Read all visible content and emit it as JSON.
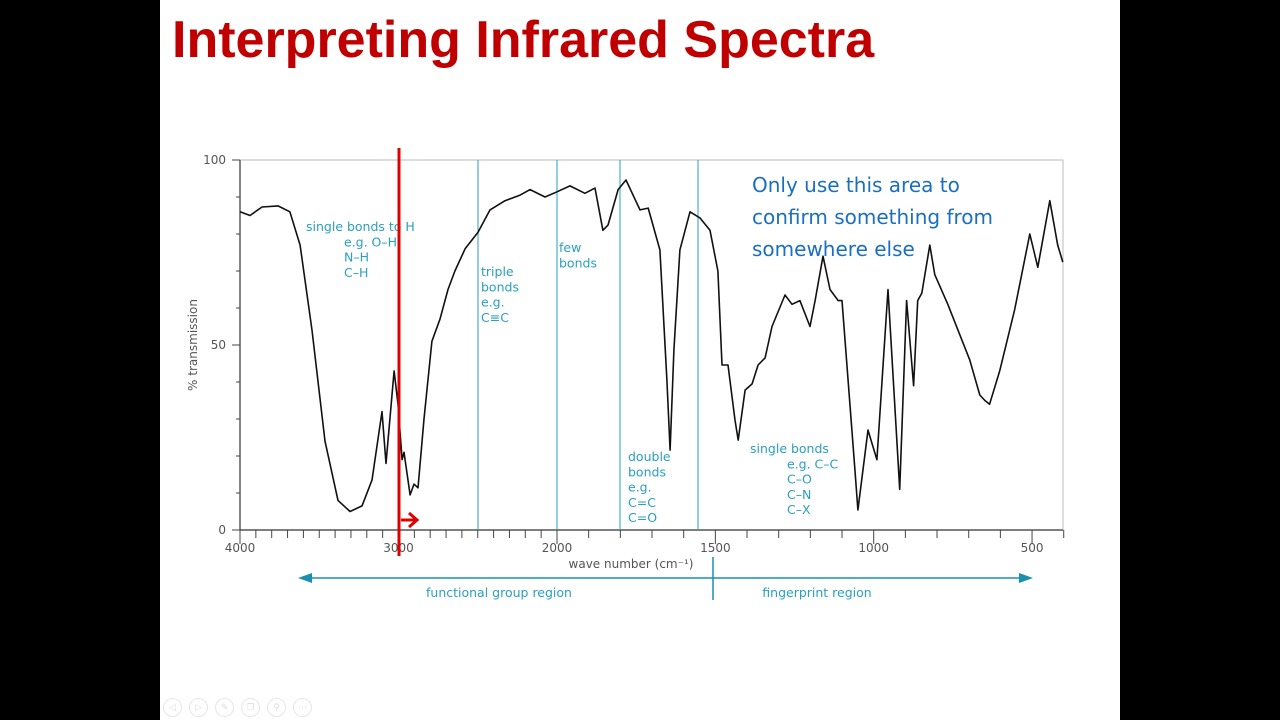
{
  "slide": {
    "title": "Interpreting Infrared Spectra",
    "note": [
      "Only use this area to",
      "confirm something from",
      "somewhere else"
    ]
  },
  "toolbar": {
    "icons": [
      "previous-icon",
      "next-icon",
      "pen-icon",
      "slides-icon",
      "zoom-icon",
      "more-icon"
    ],
    "glyphs": [
      "◁",
      "▷",
      "✎",
      "❐",
      "⚲",
      "⋯"
    ]
  },
  "colors": {
    "title": "#c00000",
    "annotation": "#2a9fc0",
    "note": "#1a6fbf",
    "presenter_mark": "#e00000",
    "spectrum": "#111111"
  },
  "chart_data": {
    "type": "line",
    "title": "",
    "xlabel": "wave number (cm⁻¹)",
    "ylabel": "% transmission",
    "xlim": [
      4000,
      400
    ],
    "ylim": [
      0,
      100
    ],
    "x_scale_note": "axis compressed 4000–2000, expanded 2000–400",
    "x_ticks": [
      4000,
      3000,
      2000,
      1500,
      1000,
      500
    ],
    "y_ticks": [
      0,
      50,
      100
    ],
    "grid": false,
    "region_dividers": [
      2500,
      2000,
      1800,
      1550
    ],
    "region_labels": [
      {
        "lines": [
          "single bonds to H",
          "e.g.   O–H",
          "N–H",
          "C–H"
        ]
      },
      {
        "lines": [
          "triple",
          "bonds",
          "e.g.",
          "C≡C"
        ]
      },
      {
        "lines": [
          "few",
          "bonds"
        ]
      },
      {
        "lines": [
          "double",
          "bonds",
          "e.g.",
          "C=C",
          "C=O"
        ]
      },
      {
        "lines": [
          "single bonds",
          "e.g.   C–C",
          "C–O",
          "C–N",
          "C–X"
        ]
      }
    ],
    "regions": {
      "functional": "functional group region",
      "fingerprint": "fingerprint region",
      "boundary": 1500
    },
    "presenter_marker": 3000,
    "series": [
      {
        "x": [
          4000,
          3937,
          3861,
          3760,
          3685,
          3621,
          3546,
          3464,
          3382,
          3306,
          3230,
          3167,
          3104,
          3079,
          3054,
          3028,
          3003,
          2977,
          2965,
          2927,
          2902,
          2877,
          2839,
          2789,
          2738,
          2688,
          2644,
          2580,
          2498,
          2423,
          2328,
          2233,
          2170,
          2076,
          2000,
          1959,
          1912,
          1880,
          1855,
          1839,
          1807,
          1782,
          1738,
          1712,
          1675,
          1653,
          1643,
          1631,
          1612,
          1580,
          1548,
          1517,
          1492,
          1479,
          1460,
          1438,
          1428,
          1406,
          1384,
          1365,
          1343,
          1321,
          1280,
          1258,
          1233,
          1201,
          1185,
          1160,
          1138,
          1112,
          1100,
          1059,
          1050,
          1018,
          990,
          955,
          918,
          896,
          874,
          861,
          848,
          823,
          807,
          766,
          697,
          665,
          649,
          634,
          602,
          555,
          507,
          482,
          444,
          419,
          403
        ],
        "y": [
          86,
          85,
          87.3,
          87.6,
          86,
          77,
          54,
          24,
          8,
          5,
          6.5,
          13.5,
          32,
          18,
          30,
          43,
          34,
          19,
          21,
          9.5,
          12.4,
          11.4,
          30,
          51,
          57,
          65,
          70,
          76,
          80.5,
          86.5,
          89,
          90.5,
          92,
          90,
          91.4,
          93,
          91,
          92.4,
          81,
          82.4,
          92,
          94.6,
          86.5,
          87,
          75.7,
          40.5,
          21.6,
          48.6,
          75.7,
          86,
          84.3,
          81,
          70,
          44.6,
          44.6,
          29.7,
          24.3,
          37.8,
          39.5,
          44.6,
          46.5,
          55,
          63.5,
          61,
          62,
          55,
          62,
          74,
          65,
          62,
          62,
          16,
          5.4,
          27,
          19,
          65,
          11,
          62,
          39,
          62,
          64,
          77,
          69,
          61,
          46,
          36.5,
          35,
          34,
          43,
          59.5,
          80,
          71,
          89,
          77,
          72.4
        ]
      }
    ]
  }
}
